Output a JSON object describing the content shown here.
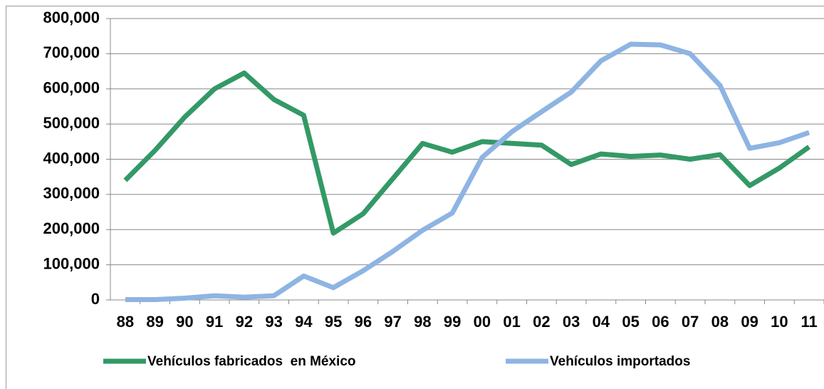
{
  "chart_data": {
    "type": "line",
    "categories": [
      "88",
      "89",
      "90",
      "91",
      "92",
      "93",
      "94",
      "95",
      "96",
      "97",
      "98",
      "99",
      "00",
      "01",
      "02",
      "03",
      "04",
      "05",
      "06",
      "07",
      "08",
      "09",
      "10",
      "11"
    ],
    "series": [
      {
        "name": "Vehículos fabricados  en México",
        "color": "#339966",
        "values": [
          340000,
          425000,
          520000,
          600000,
          645000,
          570000,
          525000,
          190000,
          245000,
          345000,
          445000,
          420000,
          450000,
          445000,
          440000,
          385000,
          415000,
          408000,
          412000,
          400000,
          413000,
          325000,
          375000,
          435000
        ]
      },
      {
        "name": "Vehículos importados",
        "color": "#8eb4e3",
        "values": [
          1000,
          1000,
          5000,
          12000,
          8000,
          12000,
          68000,
          35000,
          83000,
          138000,
          198000,
          247000,
          405000,
          478000,
          535000,
          591000,
          680000,
          727000,
          725000,
          700000,
          610000,
          431000,
          447000,
          476000
        ]
      }
    ],
    "ylim": [
      0,
      800000
    ],
    "yticks": [
      0,
      {
        "value": 100000,
        "label": "100,000"
      },
      {
        "value": 200000,
        "label": "200,000"
      },
      {
        "value": 300000,
        "label": "300,000"
      },
      {
        "value": 400000,
        "label": "400,000"
      },
      {
        "value": 500000,
        "label": "500,000"
      },
      {
        "value": 600000,
        "label": "600,000"
      },
      {
        "value": 700000,
        "label": "700,000"
      },
      {
        "value": 800000,
        "label": "800,000"
      }
    ],
    "grid": true,
    "legend": "bottom"
  }
}
